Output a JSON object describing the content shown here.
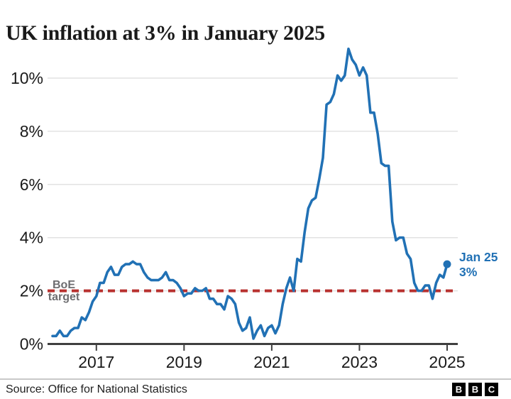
{
  "header": {
    "title": "UK inflation at 3% in January 2025"
  },
  "chart_data": {
    "type": "line",
    "title": "UK inflation at 3% in January 2025",
    "x_start_year": 2016,
    "frequency": "monthly",
    "series": [
      {
        "name": "CPI annual inflation rate (%)",
        "values": [
          0.3,
          0.3,
          0.5,
          0.3,
          0.3,
          0.5,
          0.6,
          0.6,
          1.0,
          0.9,
          1.2,
          1.6,
          1.8,
          2.3,
          2.3,
          2.7,
          2.9,
          2.6,
          2.6,
          2.9,
          3.0,
          3.0,
          3.1,
          3.0,
          3.0,
          2.7,
          2.5,
          2.4,
          2.4,
          2.4,
          2.5,
          2.7,
          2.4,
          2.4,
          2.3,
          2.1,
          1.8,
          1.9,
          1.9,
          2.1,
          2.0,
          2.0,
          2.1,
          1.7,
          1.7,
          1.5,
          1.5,
          1.3,
          1.8,
          1.7,
          1.5,
          0.8,
          0.5,
          0.6,
          1.0,
          0.2,
          0.5,
          0.7,
          0.3,
          0.6,
          0.7,
          0.4,
          0.7,
          1.5,
          2.1,
          2.5,
          2.0,
          3.2,
          3.1,
          4.2,
          5.1,
          5.4,
          5.5,
          6.2,
          7.0,
          9.0,
          9.1,
          9.4,
          10.1,
          9.9,
          10.1,
          11.1,
          10.7,
          10.5,
          10.1,
          10.4,
          10.1,
          8.7,
          8.7,
          7.9,
          6.8,
          6.7,
          6.7,
          4.6,
          3.9,
          4.0,
          4.0,
          3.4,
          3.2,
          2.3,
          2.0,
          2.0,
          2.2,
          2.2,
          1.7,
          2.3,
          2.6,
          2.5,
          3.0
        ]
      }
    ],
    "x_tick_labels": [
      "2017",
      "2019",
      "2021",
      "2023",
      "2025"
    ],
    "y_ticks": [
      0,
      2,
      4,
      6,
      8,
      10
    ],
    "y_tick_labels": [
      "0%",
      "2%",
      "4%",
      "6%",
      "8%",
      "10%"
    ],
    "ylim": [
      0,
      11.5
    ],
    "grid": true,
    "legend_position": "none",
    "line_color": "#2171b5",
    "target_line": {
      "value": 2,
      "label_lines": [
        "BoE",
        "target"
      ],
      "color": "#b8312f",
      "label_color": "#6d6d70"
    },
    "annotation": {
      "lines": [
        "Jan 25",
        "3%"
      ],
      "value": 3.0,
      "color": "#2171b5"
    }
  },
  "footer": {
    "source": "Source: Office for National Statistics",
    "logo_letters": [
      "B",
      "B",
      "C"
    ]
  }
}
